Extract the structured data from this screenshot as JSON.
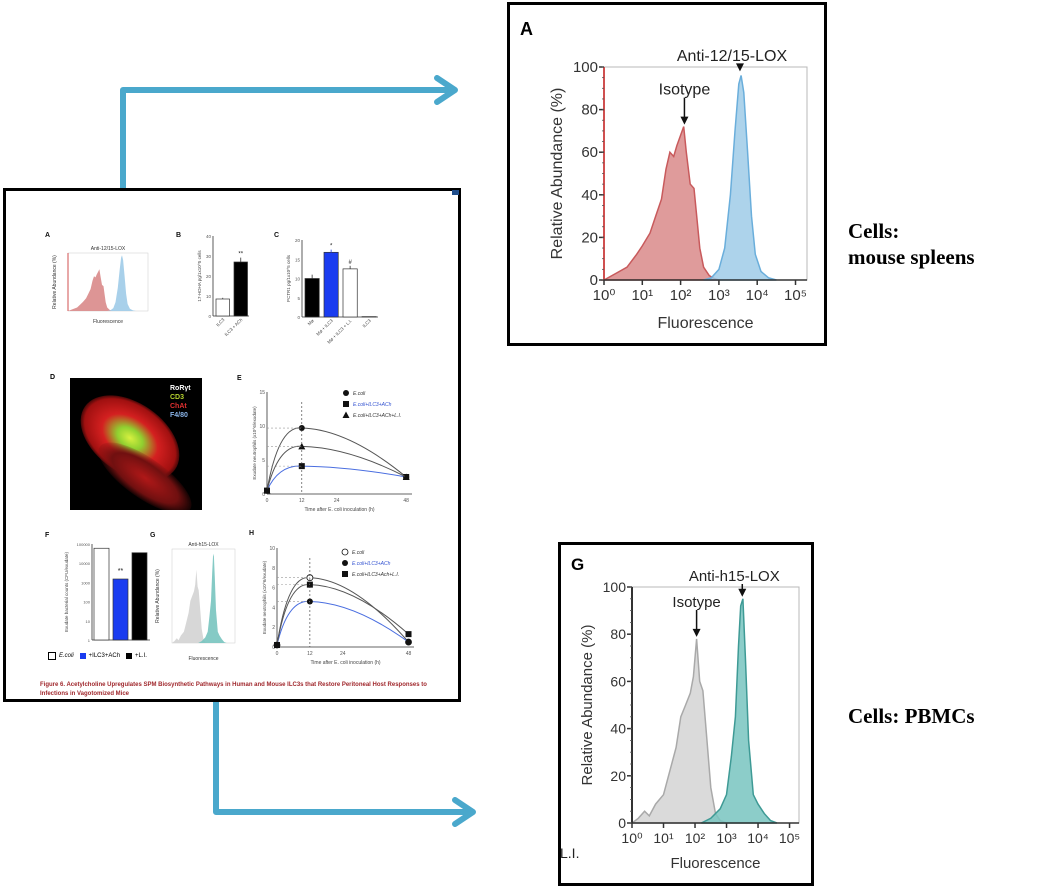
{
  "colors": {
    "arrow": "#4aa8cc",
    "mouse_isotype_fill": "#d9898a",
    "mouse_isotype_line": "#c85a5c",
    "mouse_antibody_fill": "#9fcbe8",
    "mouse_antibody_line": "#6aaedb",
    "human_isotype_fill": "#d3d3d3",
    "human_isotype_line": "#a9a9a9",
    "human_antibody_fill": "#78c4bf",
    "human_antibody_line": "#3e9a95",
    "caption_red": "#a0282d",
    "bar_blue": "#1a3cf0"
  },
  "annotations": {
    "mouse_cells": [
      "Cells:",
      "mouse spleens"
    ],
    "human_cells": "Cells: PBMCs",
    "stray_text": "L.I."
  },
  "figure": {
    "caption_line1": "Figure 6. Acetylcholine Upregulates SPM Biosynthetic Pathways in Human and Mouse ILC3s that Restore Peritoneal Host Responses to",
    "caption_line2": "Infections in Vagotomized Mice",
    "panels": {
      "A": "A",
      "B": "B",
      "C": "C",
      "D": "D",
      "E": "E",
      "F": "F",
      "G": "G",
      "H": "H"
    },
    "D_legend": [
      "RoRγt",
      "CD3",
      "ChAt",
      "F4/80"
    ],
    "F_legend": [
      "E.coli",
      "+ILC3+ACh",
      "+L.I."
    ],
    "E_legend": [
      "E.coli",
      "E.coli+ILC3+ACh",
      "E.coli+ILC3+ACh+L.I."
    ],
    "H_legend": [
      "E.coli",
      "E.coli+ILC3+ACh",
      "E.coli+ILC3+Ach+L.I."
    ]
  },
  "chart_data": [
    {
      "id": "zoom-A",
      "type": "area",
      "panel_label": "A",
      "title": "Anti-12/15-LOX",
      "xlabel": "Fluorescence",
      "ylabel": "Relative Abundance (%)",
      "xscale": "log",
      "xlim": [
        0,
        5.3
      ],
      "ylim": [
        0,
        100
      ],
      "x_ticks": [
        "10^0",
        "10^1",
        "10^2",
        "10^3",
        "10^4",
        "10^5"
      ],
      "y_ticks": [
        0,
        20,
        40,
        60,
        80,
        100
      ],
      "annotations": [
        {
          "text": "Isotype",
          "x_log": 2.1,
          "y": 72
        },
        {
          "text": "Anti-12/15-LOX",
          "x_log": 3.55,
          "y": 97
        }
      ],
      "series": [
        {
          "name": "Isotype",
          "x_log": [
            0.0,
            0.3,
            0.6,
            0.85,
            1.0,
            1.2,
            1.35,
            1.5,
            1.62,
            1.72,
            1.82,
            1.9,
            2.0,
            2.08,
            2.15,
            2.25,
            2.35,
            2.42,
            2.5,
            2.6,
            2.75,
            2.9,
            3.0
          ],
          "y": [
            0,
            3,
            6,
            12,
            16,
            22,
            30,
            38,
            52,
            60,
            58,
            63,
            68,
            72,
            60,
            45,
            43,
            30,
            15,
            6,
            2,
            0.5,
            0
          ]
        },
        {
          "name": "Anti-12/15-LOX",
          "x_log": [
            2.6,
            2.8,
            3.0,
            3.15,
            3.3,
            3.42,
            3.52,
            3.58,
            3.65,
            3.75,
            3.85,
            3.95,
            4.1,
            4.3,
            4.5
          ],
          "y": [
            0,
            1,
            5,
            15,
            40,
            70,
            92,
            96,
            88,
            60,
            30,
            12,
            4,
            1,
            0
          ]
        }
      ]
    },
    {
      "id": "zoom-G",
      "type": "area",
      "panel_label": "G",
      "title": "Anti-h15-LOX",
      "xlabel": "Fluorescence",
      "ylabel": "Relative Abundance (%)",
      "xscale": "log",
      "xlim": [
        0,
        5.3
      ],
      "ylim": [
        0,
        100
      ],
      "x_ticks": [
        "10^0",
        "10^1",
        "10^2",
        "10^3",
        "10^4",
        "10^5"
      ],
      "y_ticks": [
        0,
        20,
        40,
        60,
        80,
        100
      ],
      "annotations": [
        {
          "text": "Isotype",
          "x_log": 2.05,
          "y": 78
        },
        {
          "text": "Anti-h15-LOX",
          "x_log": 3.5,
          "y": 95
        }
      ],
      "series": [
        {
          "name": "Isotype",
          "x_log": [
            0.0,
            0.2,
            0.4,
            0.55,
            0.75,
            1.0,
            1.2,
            1.4,
            1.55,
            1.7,
            1.85,
            1.95,
            2.05,
            2.15,
            2.25,
            2.35,
            2.5,
            2.65,
            2.8,
            3.0
          ],
          "y": [
            0,
            2,
            5,
            3,
            8,
            12,
            22,
            32,
            45,
            50,
            55,
            62,
            78,
            60,
            56,
            40,
            15,
            4,
            1,
            0
          ]
        },
        {
          "name": "Anti-h15-LOX",
          "x_log": [
            2.2,
            2.5,
            2.8,
            3.0,
            3.15,
            3.28,
            3.38,
            3.45,
            3.52,
            3.6,
            3.7,
            3.85,
            4.0,
            4.2,
            4.4,
            4.6
          ],
          "y": [
            0,
            2,
            6,
            12,
            28,
            45,
            75,
            92,
            95,
            70,
            35,
            12,
            8,
            4,
            1,
            0
          ]
        }
      ]
    },
    {
      "id": "mini-B",
      "type": "bar",
      "panel_label": "B",
      "ylabel": "17-HDHA pg/1x10^5 cells",
      "categories": [
        "ILC3",
        "ILC3 + ACh"
      ],
      "values": [
        8.5,
        27
      ],
      "errors": [
        0.6,
        2.2
      ],
      "fills": [
        "#ffffff",
        "#000000"
      ],
      "significance": [
        "",
        "**"
      ],
      "ylim": [
        0,
        40
      ],
      "y_ticks": [
        0,
        10,
        20,
        30,
        40
      ]
    },
    {
      "id": "mini-C",
      "type": "bar",
      "panel_label": "C",
      "ylabel": "PCTR1 pg/1x10^5 cells",
      "categories": [
        "Mø",
        "Mø + ILC3",
        "Mø + ILC3 + L.I.",
        "ILC3"
      ],
      "values": [
        10,
        16.8,
        12.5,
        0.1
      ],
      "errors": [
        1.0,
        0.7,
        0.8,
        0
      ],
      "fills": [
        "#000000",
        "#1a3cf0",
        "#ffffff",
        "#000000"
      ],
      "significance": [
        "",
        "*",
        "#",
        ""
      ],
      "ylim": [
        0,
        20
      ],
      "y_ticks": [
        0,
        5,
        10,
        15,
        20
      ]
    },
    {
      "id": "mini-E",
      "type": "line",
      "panel_label": "E",
      "xlabel": "Time after E. coli inoculation (h)",
      "ylabel": "Exudate neutrophils (x10^6/exudate)",
      "x_ticks": [
        0,
        12,
        24,
        48
      ],
      "y_ticks": [
        0,
        5,
        10,
        15
      ],
      "xlim": [
        0,
        50
      ],
      "ylim": [
        0,
        15
      ],
      "series": [
        {
          "name": "E.coli",
          "x": [
            0,
            12,
            48
          ],
          "y": [
            0.5,
            9.7,
            2.5
          ],
          "color": "#555555",
          "marker": "circle"
        },
        {
          "name": "E.coli+ILC3+ACh",
          "x": [
            0,
            12,
            48
          ],
          "y": [
            0.5,
            4.1,
            2.5
          ],
          "color": "#4a6ee0",
          "marker": "square"
        },
        {
          "name": "E.coli+ILC3+ACh+L.I.",
          "x": [
            0,
            12,
            48
          ],
          "y": [
            0.5,
            7.0,
            2.5
          ],
          "color": "#555555",
          "marker": "triangle"
        }
      ]
    },
    {
      "id": "mini-F",
      "type": "bar",
      "panel_label": "F",
      "ylabel": "Exudate bacterial counts (CFU/exudate)",
      "yscale": "log",
      "categories": [
        "E.coli",
        "+ILC3+ACh",
        "+L.I."
      ],
      "values": [
        60000,
        1500,
        35000
      ],
      "fills": [
        "#ffffff",
        "#1a3cf0",
        "#000000"
      ],
      "significance": [
        "",
        "**",
        ""
      ],
      "ylim": [
        1,
        100000
      ],
      "y_ticks": [
        "1",
        "10",
        "100",
        "1000",
        "10000",
        "100000"
      ]
    },
    {
      "id": "mini-H",
      "type": "line",
      "panel_label": "H",
      "xlabel": "Time after E. coli inoculation (h)",
      "ylabel": "Exudate neutrophils (x10^6/exudate)",
      "x_ticks": [
        0,
        12,
        24,
        48
      ],
      "y_ticks": [
        0,
        2,
        4,
        6,
        8,
        10
      ],
      "xlim": [
        0,
        50
      ],
      "ylim": [
        0,
        10
      ],
      "series": [
        {
          "name": "E.coli",
          "x": [
            0,
            12,
            48
          ],
          "y": [
            0.2,
            7.0,
            0.5
          ],
          "color": "#555555",
          "marker": "open-circle"
        },
        {
          "name": "E.coli+ILC3+ACh",
          "x": [
            0,
            12,
            48
          ],
          "y": [
            0.2,
            4.6,
            0.5
          ],
          "color": "#4a6ee0",
          "marker": "circle"
        },
        {
          "name": "E.coli+ILC3+Ach+L.I.",
          "x": [
            0,
            12,
            48
          ],
          "y": [
            0.2,
            6.3,
            1.3
          ],
          "color": "#555555",
          "marker": "square"
        }
      ]
    }
  ]
}
